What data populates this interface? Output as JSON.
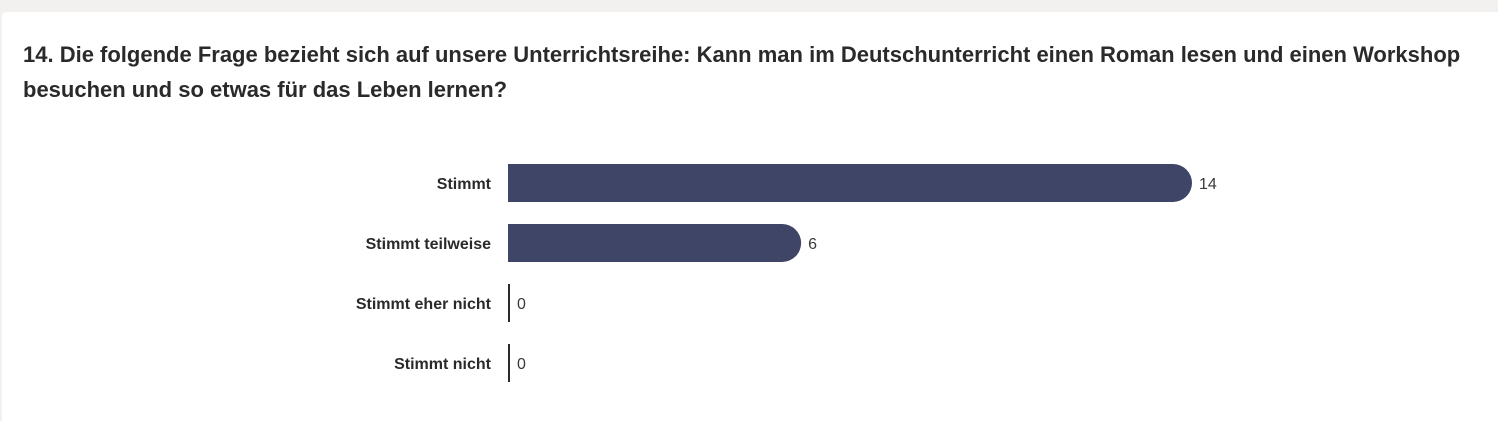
{
  "question": {
    "title": "14. Die folgende Frage bezieht sich auf unsere Unterrichtsreihe: Kann man im Deutschunterricht einen Roman lesen und einen Workshop besuchen und so etwas für das Leben lernen?"
  },
  "chart_data": {
    "type": "bar",
    "orientation": "horizontal",
    "categories": [
      "Stimmt",
      "Stimmt teilweise",
      "Stimmt eher nicht",
      "Stimmt nicht"
    ],
    "values": [
      14,
      6,
      0,
      0
    ],
    "bar_color": "#3f4566",
    "grid": false,
    "legend": "none"
  }
}
